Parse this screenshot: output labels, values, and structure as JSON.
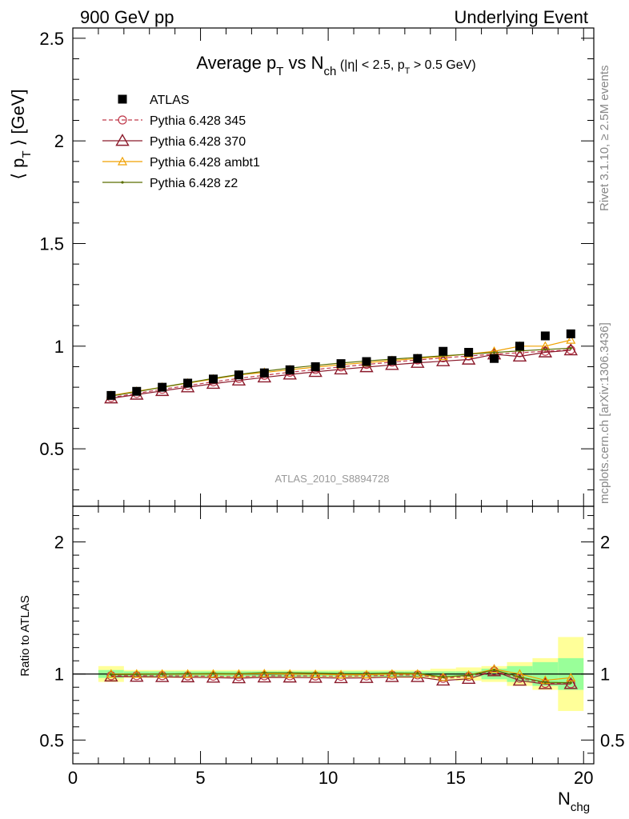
{
  "header": {
    "left": "900 GeV pp",
    "right": "Underlying Event"
  },
  "title": {
    "prefix": "Average p",
    "sub1": "T",
    "mid": " vs N",
    "sub2": "ch",
    "cut_a": " (|η| < 2.5, p",
    "cut_sub": "T",
    "cut_b": " > 0.5 GeV)"
  },
  "ylabel": {
    "a": "⟨ p",
    "sub": "T",
    "b": " ⟩ [GeV]"
  },
  "ratio_ylabel": "Ratio to ATLAS",
  "xlabel": {
    "main": "N",
    "sub": "chg"
  },
  "side_text": {
    "rivet": "Rivet 3.1.10, ≥ 2.5M events",
    "mcplots": "mcplots.cern.ch [arXiv:1306.3436]"
  },
  "analysis_id": "ATLAS_2010_S8894728",
  "colors": {
    "data": "#000000",
    "p345": "#c0394b",
    "p370": "#8b1a2b",
    "ambt1": "#f0a000",
    "z2": "#5a6e00",
    "band_inner": "#99ff99",
    "band_outer": "#ffff99"
  },
  "chart_data": {
    "type": "scatter",
    "main": {
      "xlim": [
        0,
        20.4
      ],
      "ylim": [
        0.22,
        2.55
      ],
      "yticks": [
        {
          "v": 0.5,
          "label": "0.5"
        },
        {
          "v": 1,
          "label": "1"
        },
        {
          "v": 1.5,
          "label": "1.5"
        },
        {
          "v": 2,
          "label": "2"
        },
        {
          "v": 2.5,
          "label": "2.5"
        }
      ]
    },
    "ratio": {
      "ylim": [
        0.32,
        2.27
      ],
      "yticks": [
        {
          "v": 0.5,
          "label": "0.5"
        },
        {
          "v": 1,
          "label": "1"
        },
        {
          "v": 2,
          "label": "2"
        }
      ]
    },
    "xticks": [
      {
        "v": 0,
        "label": "0"
      },
      {
        "v": 5,
        "label": "5"
      },
      {
        "v": 10,
        "label": "10"
      },
      {
        "v": 15,
        "label": "15"
      },
      {
        "v": 20,
        "label": "20"
      }
    ],
    "x": [
      1.5,
      2.5,
      3.5,
      4.5,
      5.5,
      6.5,
      7.5,
      8.5,
      9.5,
      10.5,
      11.5,
      12.5,
      13.5,
      14.5,
      15.5,
      16.5,
      17.5,
      18.5,
      19.5
    ],
    "data_values": [
      0.76,
      0.78,
      0.8,
      0.82,
      0.84,
      0.86,
      0.87,
      0.885,
      0.9,
      0.915,
      0.925,
      0.93,
      0.94,
      0.975,
      0.97,
      0.94,
      1.0,
      1.05,
      1.06
    ],
    "band_inner_rel": [
      0.03,
      0.02,
      0.02,
      0.02,
      0.02,
      0.02,
      0.02,
      0.02,
      0.02,
      0.02,
      0.02,
      0.02,
      0.02,
      0.02,
      0.02,
      0.04,
      0.06,
      0.09,
      0.12
    ],
    "band_outer_rel": [
      0.06,
      0.03,
      0.03,
      0.03,
      0.03,
      0.03,
      0.03,
      0.03,
      0.03,
      0.03,
      0.03,
      0.03,
      0.03,
      0.04,
      0.05,
      0.06,
      0.09,
      0.12,
      0.28
    ],
    "legend": [
      {
        "label": "ATLAS",
        "key": "data"
      },
      {
        "label": "Pythia 6.428 345",
        "key": "p345"
      },
      {
        "label": "Pythia 6.428 370",
        "key": "p370"
      },
      {
        "label": "Pythia 6.428 ambt1",
        "key": "ambt1"
      },
      {
        "label": "Pythia 6.428 z2",
        "key": "z2"
      }
    ],
    "series": [
      {
        "name": "Pythia 6.428 345",
        "key": "p345",
        "marker": "circle",
        "dashed": true,
        "values": [
          0.75,
          0.77,
          0.79,
          0.808,
          0.826,
          0.843,
          0.858,
          0.873,
          0.886,
          0.899,
          0.911,
          0.922,
          0.933,
          0.943,
          0.952,
          0.961,
          0.968,
          0.975,
          0.982
        ]
      },
      {
        "name": "Pythia 6.428 370",
        "key": "p370",
        "marker": "triangle",
        "dashed": false,
        "values": [
          0.746,
          0.764,
          0.782,
          0.8,
          0.817,
          0.833,
          0.848,
          0.862,
          0.875,
          0.887,
          0.898,
          0.909,
          0.919,
          0.927,
          0.935,
          0.96,
          0.95,
          0.97,
          0.98
        ]
      },
      {
        "name": "Pythia 6.428 ambt1",
        "key": "ambt1",
        "marker": "triangle-small",
        "dashed": false,
        "values": [
          0.76,
          0.78,
          0.8,
          0.82,
          0.84,
          0.86,
          0.872,
          0.885,
          0.898,
          0.91,
          0.92,
          0.93,
          0.94,
          0.95,
          0.962,
          0.975,
          1.0,
          1.0,
          1.03
        ]
      },
      {
        "name": "Pythia 6.428 z2",
        "key": "z2",
        "marker": "dot",
        "dashed": false,
        "values": [
          0.757,
          0.778,
          0.8,
          0.822,
          0.843,
          0.862,
          0.878,
          0.893,
          0.906,
          0.918,
          0.928,
          0.937,
          0.945,
          0.953,
          0.961,
          0.969,
          0.977,
          0.984,
          0.99
        ]
      }
    ]
  }
}
